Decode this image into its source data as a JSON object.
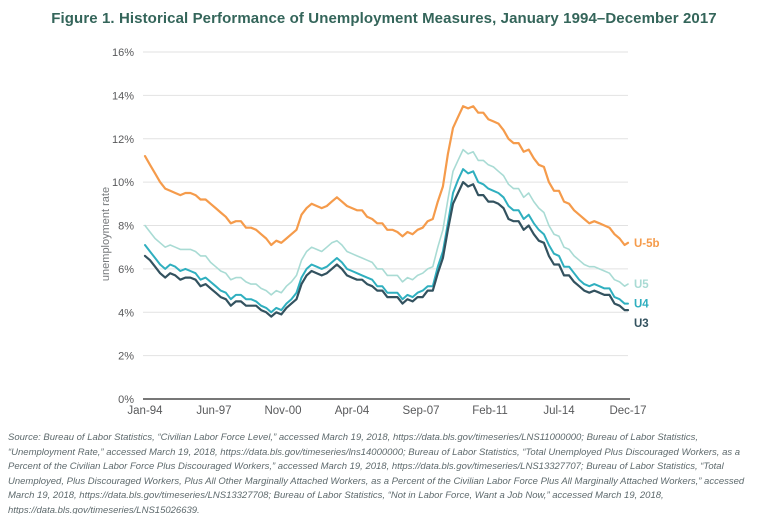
{
  "figure": {
    "title": "Figure 1. Historical Performance of Unemployment Measures, January 1994–December 2017",
    "source": "Source: Bureau of Labor Statistics, “Civilian Labor Force Level,” accessed March 19, 2018, https://data.bls.gov/timeseries/LNS11000000; Bureau of Labor Statistics, “Unemployment Rate,” accessed March 19, 2018, https://data.bls.gov/timeseries/lns14000000; Bureau of Labor Statistics, “Total Unemployed Plus Discouraged Workers, as a Percent of the Civilian Labor Force Plus Discouraged Workers,” accessed March 19, 2018, https://data.bls.gov/timeseries/LNS13327707; Bureau of Labor Statistics, “Total Unemployed, Plus Discouraged Workers, Plus All Other Marginally Attached Workers, as a Percent of the Civilian Labor Force Plus All Marginally Attached Workers,” accessed March 19, 2018, https://data.bls.gov/timeseries/LNS13327708; Bureau of Labor Statistics, “Not in Labor Force, Want a Job Now,” accessed March 19, 2018, https://data.bls.gov/timeseries/LNS15026639."
  },
  "colors": {
    "title": "#34655A",
    "axis_text": "#58595B",
    "axis_title": "#75787B",
    "grid": "#E2E2E2",
    "axis_line": "#4A4A4A",
    "source_text": "#5E6A6D",
    "background": "#FFFFFF"
  },
  "chart_data": {
    "type": "line",
    "title": "Figure 1. Historical Performance of Unemployment Measures, January 1994–December 2017",
    "xlabel": "",
    "ylabel": "unemployment rate",
    "ylim": [
      0,
      16
    ],
    "grid": true,
    "legend_position": "line-end-labels-right",
    "y_ticks": [
      0,
      2,
      4,
      6,
      8,
      10,
      12,
      14,
      16
    ],
    "y_tick_labels": [
      "0%",
      "2%",
      "4%",
      "6%",
      "8%",
      "10%",
      "12%",
      "14%",
      "16%"
    ],
    "x_tick_labels": [
      "Jan-94",
      "Jun-97",
      "Nov-00",
      "Apr-04",
      "Sep-07",
      "Feb-11",
      "Jul-14",
      "Dec-17"
    ],
    "x_tick_months": [
      0,
      41,
      82,
      123,
      164,
      205,
      246,
      287
    ],
    "x_range_months": [
      0,
      287
    ],
    "x_months": [
      0,
      3,
      6,
      9,
      12,
      15,
      18,
      21,
      24,
      27,
      30,
      33,
      36,
      39,
      42,
      45,
      48,
      51,
      54,
      57,
      60,
      63,
      66,
      69,
      72,
      75,
      78,
      81,
      84,
      87,
      90,
      93,
      96,
      99,
      102,
      105,
      108,
      111,
      114,
      117,
      120,
      123,
      126,
      129,
      132,
      135,
      138,
      141,
      144,
      147,
      150,
      153,
      156,
      159,
      162,
      165,
      168,
      171,
      174,
      177,
      180,
      183,
      186,
      189,
      192,
      195,
      198,
      201,
      204,
      207,
      210,
      213,
      216,
      219,
      222,
      225,
      228,
      231,
      234,
      237,
      240,
      243,
      246,
      249,
      252,
      255,
      258,
      261,
      264,
      267,
      270,
      273,
      276,
      279,
      282,
      285,
      287
    ],
    "series": [
      {
        "name": "U-5b",
        "color": "#F59B4B",
        "stroke_width": 2.2,
        "values": [
          11.2,
          10.8,
          10.4,
          10.0,
          9.7,
          9.6,
          9.5,
          9.4,
          9.5,
          9.5,
          9.4,
          9.2,
          9.2,
          9.0,
          8.8,
          8.6,
          8.4,
          8.1,
          8.2,
          8.2,
          7.9,
          7.9,
          7.8,
          7.6,
          7.4,
          7.1,
          7.3,
          7.2,
          7.4,
          7.6,
          7.8,
          8.5,
          8.8,
          9.0,
          8.9,
          8.8,
          8.9,
          9.1,
          9.3,
          9.1,
          8.9,
          8.8,
          8.7,
          8.7,
          8.4,
          8.3,
          8.1,
          8.1,
          7.8,
          7.8,
          7.7,
          7.5,
          7.7,
          7.6,
          7.8,
          7.9,
          8.2,
          8.3,
          9.1,
          9.8,
          11.3,
          12.5,
          13.0,
          13.5,
          13.4,
          13.5,
          13.2,
          13.2,
          12.9,
          12.8,
          12.7,
          12.4,
          12.0,
          11.8,
          11.8,
          11.4,
          11.5,
          11.1,
          10.8,
          10.7,
          10.0,
          9.6,
          9.6,
          9.1,
          9.0,
          8.7,
          8.5,
          8.3,
          8.1,
          8.2,
          8.1,
          8.0,
          7.9,
          7.6,
          7.4,
          7.1,
          7.2
        ]
      },
      {
        "name": "U5",
        "color": "#A9DBD4",
        "stroke_width": 1.6,
        "values": [
          8.0,
          7.7,
          7.4,
          7.2,
          7.0,
          7.1,
          7.0,
          6.9,
          6.9,
          6.9,
          6.8,
          6.6,
          6.6,
          6.3,
          6.1,
          5.9,
          5.8,
          5.5,
          5.6,
          5.6,
          5.4,
          5.3,
          5.3,
          5.1,
          5.0,
          4.8,
          5.0,
          4.9,
          5.2,
          5.4,
          5.7,
          6.4,
          6.8,
          7.0,
          6.9,
          6.8,
          7.0,
          7.2,
          7.3,
          7.1,
          6.8,
          6.7,
          6.6,
          6.5,
          6.4,
          6.3,
          6.0,
          6.0,
          5.7,
          5.7,
          5.7,
          5.4,
          5.6,
          5.5,
          5.7,
          5.8,
          6.0,
          6.1,
          7.0,
          7.8,
          9.2,
          10.5,
          11.0,
          11.5,
          11.3,
          11.4,
          11.0,
          11.0,
          10.8,
          10.7,
          10.5,
          10.3,
          9.9,
          9.7,
          9.7,
          9.3,
          9.5,
          9.1,
          8.8,
          8.6,
          8.0,
          7.6,
          7.5,
          7.0,
          6.9,
          6.6,
          6.4,
          6.2,
          6.1,
          6.1,
          6.0,
          5.9,
          5.8,
          5.5,
          5.4,
          5.2,
          5.3
        ]
      },
      {
        "name": "U4",
        "color": "#2FAFBF",
        "stroke_width": 2.0,
        "values": [
          7.1,
          6.8,
          6.5,
          6.2,
          6.0,
          6.2,
          6.1,
          5.9,
          6.0,
          5.9,
          5.8,
          5.5,
          5.6,
          5.4,
          5.2,
          5.0,
          4.9,
          4.6,
          4.8,
          4.8,
          4.6,
          4.6,
          4.5,
          4.3,
          4.2,
          4.0,
          4.2,
          4.1,
          4.4,
          4.6,
          4.9,
          5.6,
          6.0,
          6.2,
          6.1,
          6.0,
          6.1,
          6.3,
          6.5,
          6.3,
          6.0,
          5.9,
          5.8,
          5.7,
          5.6,
          5.5,
          5.2,
          5.2,
          4.9,
          4.9,
          4.9,
          4.6,
          4.8,
          4.7,
          4.9,
          5.0,
          5.2,
          5.2,
          6.1,
          6.8,
          8.1,
          9.5,
          10.1,
          10.6,
          10.4,
          10.5,
          10.0,
          9.9,
          9.7,
          9.6,
          9.5,
          9.3,
          8.9,
          8.7,
          8.7,
          8.3,
          8.5,
          8.1,
          7.8,
          7.6,
          7.1,
          6.7,
          6.6,
          6.1,
          6.1,
          5.8,
          5.5,
          5.3,
          5.2,
          5.3,
          5.2,
          5.1,
          5.1,
          4.7,
          4.6,
          4.4,
          4.4
        ]
      },
      {
        "name": "U3",
        "color": "#33525F",
        "stroke_width": 2.2,
        "values": [
          6.6,
          6.4,
          6.1,
          5.8,
          5.6,
          5.8,
          5.7,
          5.5,
          5.6,
          5.6,
          5.5,
          5.2,
          5.3,
          5.1,
          4.9,
          4.7,
          4.6,
          4.3,
          4.5,
          4.5,
          4.3,
          4.3,
          4.3,
          4.1,
          4.0,
          3.8,
          4.0,
          3.9,
          4.2,
          4.4,
          4.6,
          5.3,
          5.7,
          5.9,
          5.8,
          5.7,
          5.8,
          6.0,
          6.2,
          6.0,
          5.7,
          5.6,
          5.5,
          5.5,
          5.3,
          5.2,
          5.0,
          5.0,
          4.7,
          4.7,
          4.7,
          4.4,
          4.6,
          4.5,
          4.7,
          4.7,
          5.0,
          5.0,
          5.8,
          6.5,
          7.8,
          9.0,
          9.5,
          10.0,
          9.8,
          9.9,
          9.4,
          9.4,
          9.1,
          9.1,
          9.0,
          8.8,
          8.3,
          8.2,
          8.2,
          7.8,
          8.0,
          7.6,
          7.3,
          7.2,
          6.6,
          6.2,
          6.2,
          5.7,
          5.7,
          5.4,
          5.2,
          5.0,
          4.9,
          5.0,
          4.9,
          4.8,
          4.8,
          4.4,
          4.3,
          4.1,
          4.1
        ]
      }
    ]
  }
}
